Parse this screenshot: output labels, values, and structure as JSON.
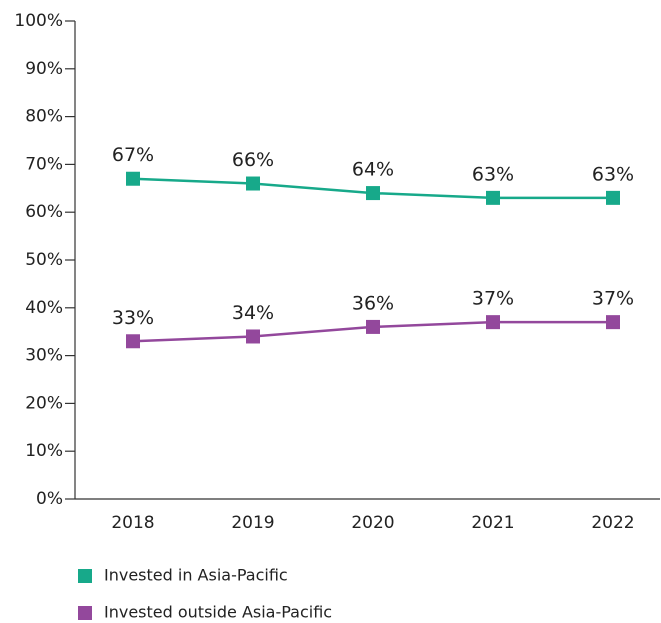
{
  "chart_data": {
    "type": "line",
    "categories": [
      "2018",
      "2019",
      "2020",
      "2021",
      "2022"
    ],
    "series": [
      {
        "name": "Invested in Asia-Pacific",
        "color": "#17a98a",
        "values": [
          67,
          66,
          64,
          63,
          63
        ],
        "value_labels": [
          "67%",
          "66%",
          "64%",
          "63%",
          "63%"
        ]
      },
      {
        "name": "Invested outside Asia-Pacific",
        "color": "#93489c",
        "values": [
          33,
          34,
          36,
          37,
          37
        ],
        "value_labels": [
          "33%",
          "34%",
          "36%",
          "37%",
          "37%"
        ]
      }
    ],
    "ylim": [
      0,
      100
    ],
    "yticks": [
      {
        "value": 0,
        "label": "0%"
      },
      {
        "value": 10,
        "label": "10%"
      },
      {
        "value": 20,
        "label": "20%"
      },
      {
        "value": 30,
        "label": "30%"
      },
      {
        "value": 40,
        "label": "40%"
      },
      {
        "value": 50,
        "label": "50%"
      },
      {
        "value": 60,
        "label": "60%"
      },
      {
        "value": 70,
        "label": "70%"
      },
      {
        "value": 80,
        "label": "80%"
      },
      {
        "value": 90,
        "label": "90%"
      },
      {
        "value": 100,
        "label": "100%"
      }
    ],
    "grid": false,
    "legend": "bottom"
  }
}
